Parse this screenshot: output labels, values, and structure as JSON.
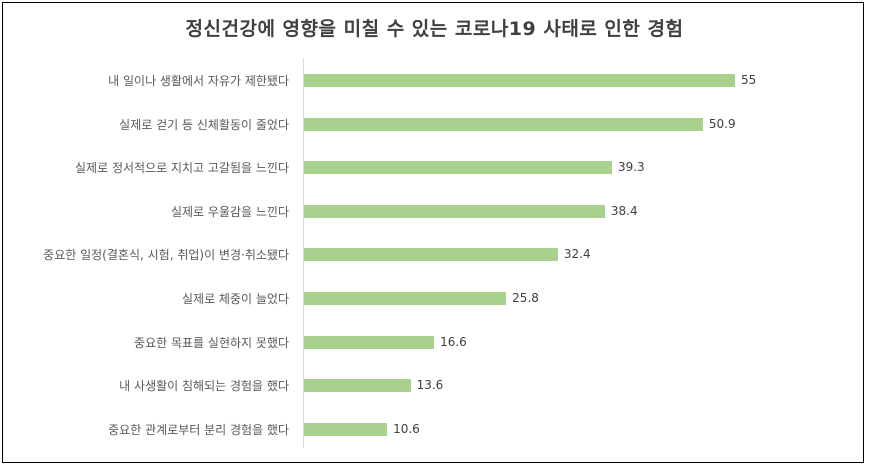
{
  "chart_data": {
    "type": "bar",
    "orientation": "horizontal",
    "title": "정신건강에 영향을 미칠 수 있는 코로나19 사태로 인한 경험",
    "xlabel": "",
    "ylabel": "",
    "categories": [
      "내 일이나 생활에서 자유가 제한됐다",
      "실제로 걷기 등 신체활동이 줄었다",
      "실제로 정서적으로 지치고 고갈됨을 느낀다",
      "실제로 우울감을 느낀다",
      "중요한 일정(결혼식, 시험, 취업)이 변경·취소됐다",
      "실제로 체중이 늘었다",
      "중요한 목표를 실현하지 못했다",
      "내 사생활이 침해되는 경험을 했다",
      "중요한 관계로부터 분리 경험을 했다"
    ],
    "values": [
      55,
      50.9,
      39.3,
      38.4,
      32.4,
      25.8,
      16.6,
      13.6,
      10.6
    ],
    "value_labels": [
      "55",
      "50.9",
      "39.3",
      "38.4",
      "32.4",
      "25.8",
      "16.6",
      "13.6",
      "10.6"
    ],
    "xlim": [
      0,
      55
    ],
    "grid": false,
    "legend": null,
    "colors": {
      "bar": "#a9d18e",
      "axis": "#d9d9d9",
      "text": "#595959",
      "title": "#404040"
    }
  }
}
